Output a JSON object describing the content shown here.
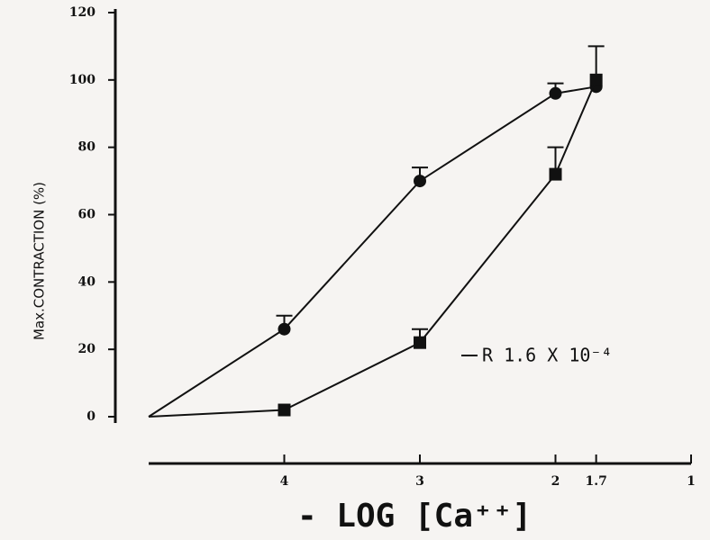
{
  "chart_data": {
    "type": "line",
    "ylabel": "Max.CONTRACTION (%)",
    "xlabel": "- LOG [Ca⁺⁺]",
    "annotation": "R 1.6 X 10⁻⁴",
    "x": [
      5,
      4,
      3,
      2,
      1.7
    ],
    "xlim": [
      5,
      1
    ],
    "xticks": [
      4,
      3,
      2,
      1.7,
      1
    ],
    "ylim": [
      0,
      120
    ],
    "yticks": [
      0,
      20,
      40,
      60,
      80,
      100,
      120
    ],
    "series": [
      {
        "marker": "circle",
        "color": "#111111",
        "values": [
          0,
          26,
          70,
          96,
          98
        ],
        "errors": [
          null,
          4,
          4,
          3,
          null
        ]
      },
      {
        "marker": "square",
        "color": "#111111",
        "values": [
          0,
          2,
          22,
          72,
          100
        ],
        "errors": [
          null,
          null,
          4,
          8,
          10
        ]
      }
    ]
  }
}
